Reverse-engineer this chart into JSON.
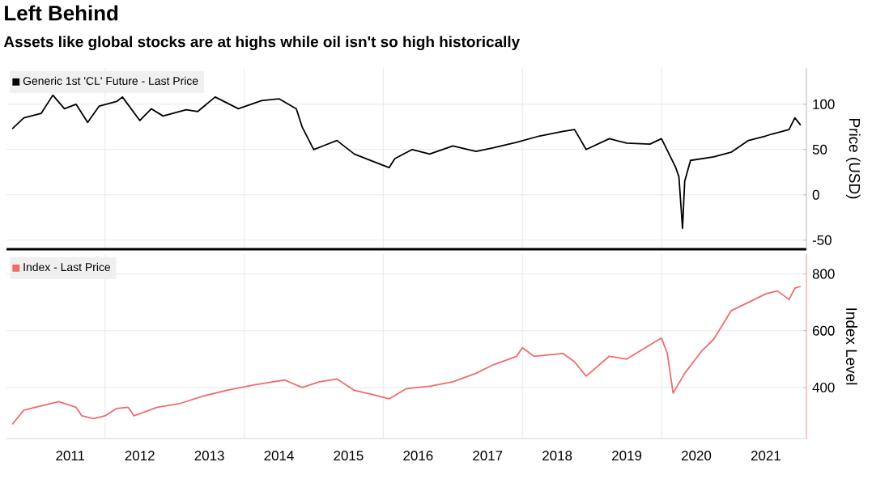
{
  "chart_data": [
    {
      "type": "line",
      "title": "Left Behind",
      "subtitle": "Assets like global stocks are at highs while oil isn't so high historically",
      "ylabel": "Price (USD)",
      "series": [
        {
          "name": "Generic 1st 'CL' Future - Last Price",
          "color": "#000000",
          "x": [
            "2010-09-01",
            "2010-11-01",
            "2011-02-01",
            "2011-04-01",
            "2011-06-01",
            "2011-08-01",
            "2011-10-01",
            "2011-12-01",
            "2012-03-01",
            "2012-04-01",
            "2012-07-01",
            "2012-09-01",
            "2012-11-01",
            "2013-03-01",
            "2013-05-01",
            "2013-08-01",
            "2013-12-01",
            "2014-04-01",
            "2014-07-01",
            "2014-10-01",
            "2014-11-01",
            "2015-01-01",
            "2015-03-01",
            "2015-05-01",
            "2015-08-01",
            "2015-12-01",
            "2016-02-01",
            "2016-03-01",
            "2016-06-01",
            "2016-09-01",
            "2017-01-01",
            "2017-05-01",
            "2017-08-01",
            "2017-12-01",
            "2018-04-01",
            "2018-08-01",
            "2018-10-01",
            "2018-12-01",
            "2019-04-01",
            "2019-07-01",
            "2019-11-01",
            "2020-01-01",
            "2020-03-15",
            "2020-04-01",
            "2020-04-20",
            "2020-05-01",
            "2020-06-01",
            "2020-10-01",
            "2021-01-01",
            "2021-04-01",
            "2021-07-01",
            "2021-08-01",
            "2021-11-01",
            "2021-12-01",
            "2022-01-01"
          ],
          "values": [
            73,
            85,
            90,
            110,
            95,
            100,
            80,
            98,
            103,
            108,
            82,
            95,
            87,
            94,
            92,
            108,
            95,
            104,
            106,
            95,
            75,
            50,
            55,
            60,
            45,
            35,
            30,
            40,
            50,
            45,
            54,
            48,
            52,
            58,
            65,
            70,
            72,
            50,
            62,
            57,
            56,
            62,
            30,
            20,
            -37,
            15,
            38,
            42,
            47,
            60,
            65,
            67,
            72,
            85,
            77
          ]
        }
      ],
      "xlim": [
        "2010-08",
        "2022-02"
      ],
      "xticks": [
        {
          "value": "2012-01",
          "label": null
        },
        {
          "value": "2014-01",
          "label": null
        },
        {
          "value": "2016-01",
          "label": null
        },
        {
          "value": "2018-01",
          "label": null
        },
        {
          "value": "2020-01",
          "label": null
        }
      ],
      "ylim": [
        -60,
        140
      ],
      "yticks": [
        -50,
        0,
        50,
        100
      ],
      "grid": true,
      "legend": "top left",
      "tick_labels": "y"
    },
    {
      "type": "line",
      "ylabel": "Index Level",
      "series": [
        {
          "name": "Index - Last Price",
          "color": "#f06c6c",
          "x": [
            "2010-09-01",
            "2010-11-01",
            "2011-03-01",
            "2011-05-01",
            "2011-08-01",
            "2011-09-01",
            "2011-11-01",
            "2012-01-01",
            "2012-03-01",
            "2012-05-01",
            "2012-06-01",
            "2012-10-01",
            "2013-02-01",
            "2013-06-01",
            "2013-10-01",
            "2014-03-01",
            "2014-06-01",
            "2014-08-01",
            "2014-11-01",
            "2015-02-01",
            "2015-05-01",
            "2015-08-01",
            "2015-11-01",
            "2016-02-01",
            "2016-05-01",
            "2016-09-01",
            "2017-01-01",
            "2017-05-01",
            "2017-08-01",
            "2017-12-01",
            "2018-01-01",
            "2018-03-01",
            "2018-08-01",
            "2018-10-01",
            "2018-12-01",
            "2019-04-01",
            "2019-07-01",
            "2019-11-01",
            "2020-01-01",
            "2020-02-01",
            "2020-03-01",
            "2020-05-01",
            "2020-08-01",
            "2020-10-01",
            "2021-01-01",
            "2021-04-01",
            "2021-07-01",
            "2021-09-01",
            "2021-11-01",
            "2021-12-01",
            "2022-01-01"
          ],
          "values": [
            270,
            320,
            340,
            350,
            330,
            300,
            290,
            300,
            326,
            330,
            300,
            330,
            344,
            370,
            390,
            410,
            420,
            426,
            400,
            420,
            430,
            390,
            376,
            360,
            396,
            404,
            420,
            450,
            480,
            510,
            540,
            510,
            520,
            490,
            440,
            510,
            500,
            550,
            574,
            520,
            380,
            450,
            530,
            570,
            670,
            700,
            730,
            740,
            710,
            750,
            756
          ]
        }
      ],
      "xlim": [
        "2010-08",
        "2022-02"
      ],
      "xticks": [
        {
          "value": "2011-07",
          "label": "2011"
        },
        {
          "value": "2012-01",
          "label": null
        },
        {
          "value": "2012-07",
          "label": "2012"
        },
        {
          "value": "2013-07",
          "label": "2013"
        },
        {
          "value": "2014-01",
          "label": null
        },
        {
          "value": "2014-07",
          "label": "2014"
        },
        {
          "value": "2015-07",
          "label": "2015"
        },
        {
          "value": "2016-01",
          "label": null
        },
        {
          "value": "2016-07",
          "label": "2016"
        },
        {
          "value": "2017-07",
          "label": "2017"
        },
        {
          "value": "2018-01",
          "label": null
        },
        {
          "value": "2018-07",
          "label": "2018"
        },
        {
          "value": "2019-07",
          "label": "2019"
        },
        {
          "value": "2020-01",
          "label": null
        },
        {
          "value": "2020-07",
          "label": "2020"
        },
        {
          "value": "2021-07",
          "label": "2021"
        }
      ],
      "ylim": [
        220,
        870
      ],
      "yticks": [
        400,
        600,
        800
      ],
      "grid": true,
      "legend": "top left"
    }
  ]
}
